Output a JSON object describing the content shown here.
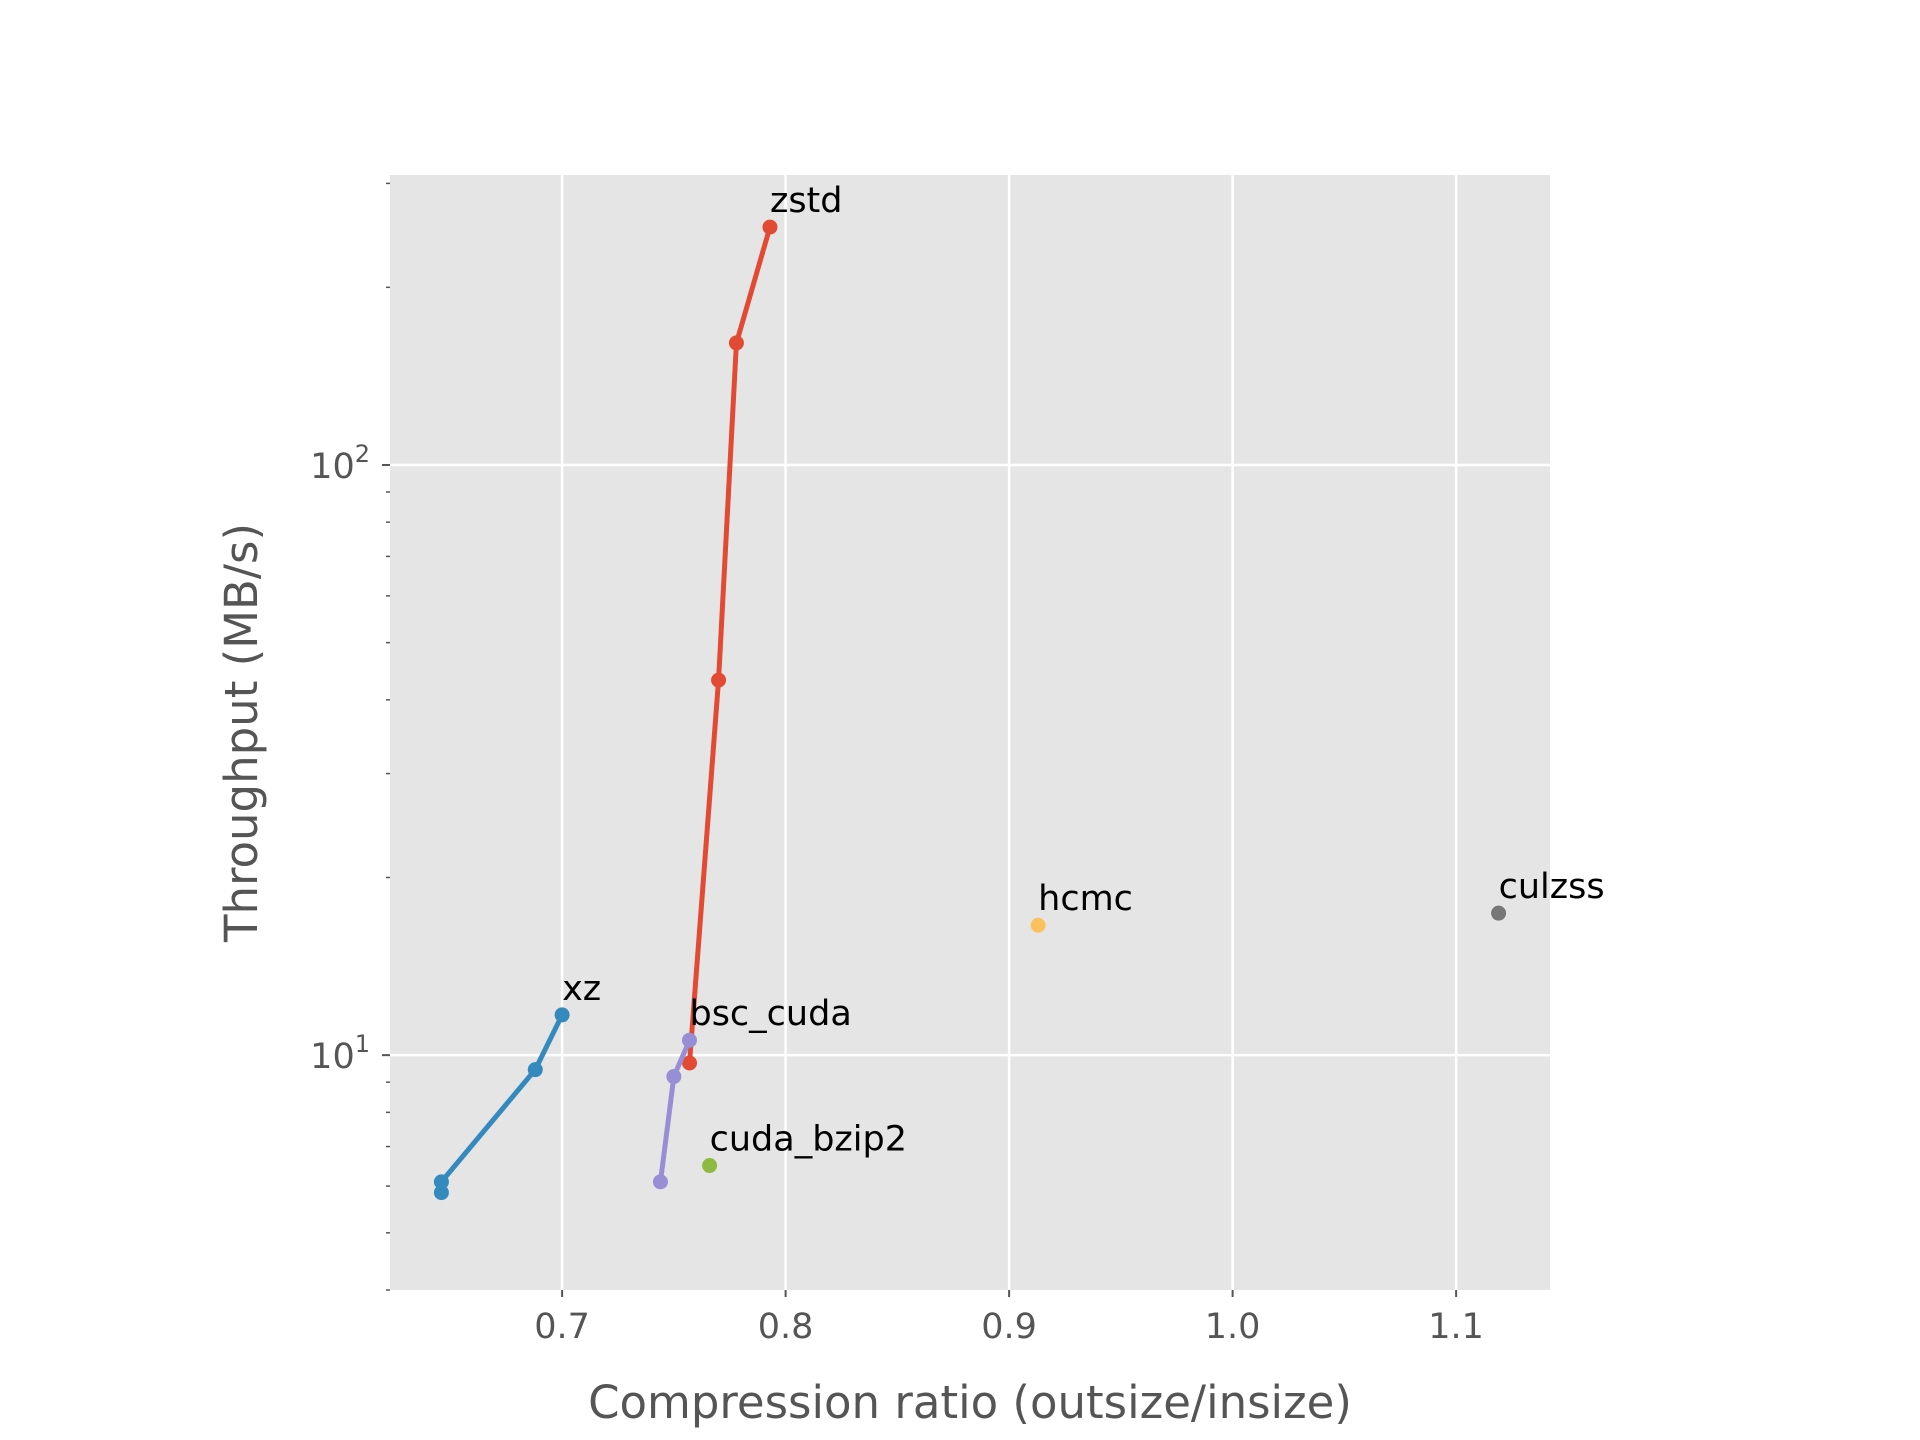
{
  "chart_data": {
    "type": "scatter",
    "title": "",
    "xlabel": "Compression ratio (outsize/insize)",
    "ylabel": "Throughput (MB/s)",
    "xscale": "linear",
    "yscale": "log",
    "xlim": [
      0.623,
      1.142
    ],
    "ylim": [
      4.0,
      310
    ],
    "grid": true,
    "legend": "none",
    "background": "#E5E5E5",
    "x_ticks": [
      {
        "value": 0.7,
        "label": "0.7"
      },
      {
        "value": 0.8,
        "label": "0.8"
      },
      {
        "value": 0.9,
        "label": "0.9"
      },
      {
        "value": 1.0,
        "label": "1.0"
      },
      {
        "value": 1.1,
        "label": "1.1"
      }
    ],
    "y_ticks": [
      {
        "value": 10,
        "base": "10",
        "exp": "1"
      },
      {
        "value": 100,
        "base": "10",
        "exp": "2"
      }
    ],
    "series": [
      {
        "name": "xz",
        "color": "#348ABD",
        "connected": true,
        "x": [
          0.7,
          0.688,
          0.646,
          0.646
        ],
        "y": [
          11.7,
          9.45,
          6.1,
          5.85
        ]
      },
      {
        "name": "zstd",
        "color": "#E24A33",
        "connected": true,
        "x": [
          0.793,
          0.778,
          0.77,
          0.757
        ],
        "y": [
          253,
          161,
          43.2,
          9.7
        ]
      },
      {
        "name": "bsc_cuda",
        "color": "#988ED5",
        "connected": true,
        "x": [
          0.757,
          0.75,
          0.744
        ],
        "y": [
          10.6,
          9.2,
          6.1
        ]
      },
      {
        "name": "cuda_bzip2",
        "color": "#8EBA42",
        "connected": false,
        "x": [
          0.766
        ],
        "y": [
          6.5
        ]
      },
      {
        "name": "hcmc",
        "color": "#FBC15E",
        "connected": false,
        "x": [
          0.913
        ],
        "y": [
          16.6
        ]
      },
      {
        "name": "culzss",
        "color": "#777777",
        "connected": false,
        "x": [
          1.119
        ],
        "y": [
          17.4
        ]
      }
    ]
  }
}
